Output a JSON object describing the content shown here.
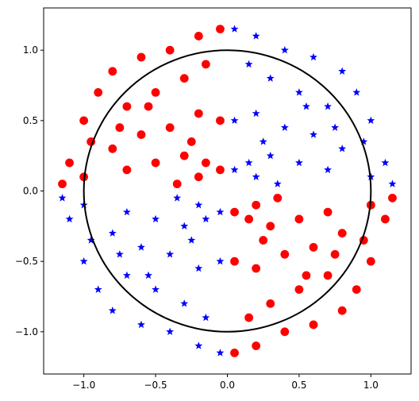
{
  "chart_data": {
    "type": "scatter",
    "title": "",
    "xlabel": "",
    "ylabel": "",
    "xlim": [
      -1.28,
      1.28
    ],
    "ylim": [
      -1.3,
      1.3
    ],
    "grid": false,
    "legend": "none",
    "x_ticks": [
      -1.0,
      -0.5,
      0.0,
      0.5,
      1.0
    ],
    "y_ticks": [
      -1.0,
      -0.5,
      0.0,
      0.5,
      1.0
    ],
    "x_tick_labels": [
      "−1.0",
      "−0.5",
      "0.0",
      "0.5",
      "1.0"
    ],
    "y_tick_labels": [
      "−1.0",
      "−0.5",
      "0.0",
      "0.5",
      "1.0"
    ],
    "series": [
      {
        "marker": "circle",
        "color": "#ff0000",
        "region": "quadrants II and IV (x*y < 0)",
        "points": [
          [
            -0.8,
            0.85
          ],
          [
            -0.6,
            0.95
          ],
          [
            -0.4,
            1.0
          ],
          [
            -0.2,
            1.1
          ],
          [
            -0.05,
            1.15
          ],
          [
            -1.0,
            0.5
          ],
          [
            -0.9,
            0.7
          ],
          [
            -0.7,
            0.6
          ],
          [
            -0.5,
            0.7
          ],
          [
            -0.3,
            0.8
          ],
          [
            -0.15,
            0.9
          ],
          [
            -1.1,
            0.2
          ],
          [
            -0.95,
            0.35
          ],
          [
            -0.8,
            0.3
          ],
          [
            -0.6,
            0.4
          ],
          [
            -0.4,
            0.45
          ],
          [
            -0.2,
            0.55
          ],
          [
            -0.05,
            0.5
          ],
          [
            -1.15,
            0.05
          ],
          [
            -1.0,
            0.1
          ],
          [
            -0.7,
            0.15
          ],
          [
            -0.5,
            0.2
          ],
          [
            -0.3,
            0.25
          ],
          [
            -0.15,
            0.2
          ],
          [
            -0.05,
            0.15
          ],
          [
            -0.35,
            0.05
          ],
          [
            -0.2,
            0.1
          ],
          [
            -0.55,
            0.6
          ],
          [
            -0.75,
            0.45
          ],
          [
            -0.25,
            0.35
          ],
          [
            0.05,
            -1.15
          ],
          [
            0.2,
            -1.1
          ],
          [
            0.4,
            -1.0
          ],
          [
            0.6,
            -0.95
          ],
          [
            0.8,
            -0.85
          ],
          [
            0.15,
            -0.9
          ],
          [
            0.3,
            -0.8
          ],
          [
            0.5,
            -0.7
          ],
          [
            0.7,
            -0.6
          ],
          [
            0.9,
            -0.7
          ],
          [
            1.0,
            -0.5
          ],
          [
            0.05,
            -0.5
          ],
          [
            0.2,
            -0.55
          ],
          [
            0.4,
            -0.45
          ],
          [
            0.6,
            -0.4
          ],
          [
            0.8,
            -0.3
          ],
          [
            0.95,
            -0.35
          ],
          [
            1.1,
            -0.2
          ],
          [
            0.05,
            -0.15
          ],
          [
            0.15,
            -0.2
          ],
          [
            0.3,
            -0.25
          ],
          [
            0.5,
            -0.2
          ],
          [
            0.7,
            -0.15
          ],
          [
            1.0,
            -0.1
          ],
          [
            1.15,
            -0.05
          ],
          [
            0.2,
            -0.1
          ],
          [
            0.35,
            -0.05
          ],
          [
            0.55,
            -0.6
          ],
          [
            0.75,
            -0.45
          ],
          [
            0.25,
            -0.35
          ]
        ]
      },
      {
        "marker": "star",
        "color": "#0000ff",
        "region": "quadrants I and III (x*y > 0)",
        "points": [
          [
            0.05,
            1.15
          ],
          [
            0.2,
            1.1
          ],
          [
            0.4,
            1.0
          ],
          [
            0.6,
            0.95
          ],
          [
            0.8,
            0.85
          ],
          [
            0.15,
            0.9
          ],
          [
            0.3,
            0.8
          ],
          [
            0.5,
            0.7
          ],
          [
            0.7,
            0.6
          ],
          [
            0.9,
            0.7
          ],
          [
            1.0,
            0.5
          ],
          [
            0.05,
            0.5
          ],
          [
            0.2,
            0.55
          ],
          [
            0.4,
            0.45
          ],
          [
            0.6,
            0.4
          ],
          [
            0.8,
            0.3
          ],
          [
            0.95,
            0.35
          ],
          [
            1.1,
            0.2
          ],
          [
            0.05,
            0.15
          ],
          [
            0.15,
            0.2
          ],
          [
            0.3,
            0.25
          ],
          [
            0.5,
            0.2
          ],
          [
            0.7,
            0.15
          ],
          [
            1.0,
            0.1
          ],
          [
            1.15,
            0.05
          ],
          [
            0.2,
            0.1
          ],
          [
            0.35,
            0.05
          ],
          [
            0.55,
            0.6
          ],
          [
            0.75,
            0.45
          ],
          [
            0.25,
            0.35
          ],
          [
            -0.05,
            -1.15
          ],
          [
            -0.2,
            -1.1
          ],
          [
            -0.4,
            -1.0
          ],
          [
            -0.6,
            -0.95
          ],
          [
            -0.8,
            -0.85
          ],
          [
            -0.15,
            -0.9
          ],
          [
            -0.3,
            -0.8
          ],
          [
            -0.5,
            -0.7
          ],
          [
            -0.7,
            -0.6
          ],
          [
            -0.9,
            -0.7
          ],
          [
            -1.0,
            -0.5
          ],
          [
            -0.05,
            -0.5
          ],
          [
            -0.2,
            -0.55
          ],
          [
            -0.4,
            -0.45
          ],
          [
            -0.6,
            -0.4
          ],
          [
            -0.8,
            -0.3
          ],
          [
            -0.95,
            -0.35
          ],
          [
            -1.1,
            -0.2
          ],
          [
            -0.05,
            -0.15
          ],
          [
            -0.15,
            -0.2
          ],
          [
            -0.3,
            -0.25
          ],
          [
            -0.5,
            -0.2
          ],
          [
            -0.7,
            -0.15
          ],
          [
            -1.0,
            -0.1
          ],
          [
            -1.15,
            -0.05
          ],
          [
            -0.2,
            -0.1
          ],
          [
            -0.35,
            -0.05
          ],
          [
            -0.55,
            -0.6
          ],
          [
            -0.75,
            -0.45
          ],
          [
            -0.25,
            -0.35
          ]
        ]
      }
    ],
    "overlays": [
      {
        "type": "circle",
        "center": [
          0,
          0
        ],
        "radius": 1.0,
        "color": "#000000"
      }
    ]
  }
}
